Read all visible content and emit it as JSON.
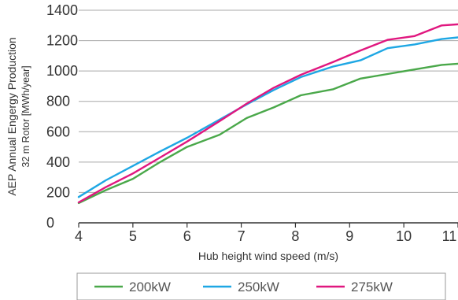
{
  "chart_data": {
    "type": "line",
    "xlabel": "Hub height wind speed (m/s)",
    "ylabel": [
      "AEP Annual Engergy Production",
      "32 m Rotor [MWh/year]"
    ],
    "xlim": [
      4,
      11
    ],
    "ylim": [
      0,
      1400
    ],
    "x_ticks": [
      4,
      5,
      6,
      7,
      8,
      9,
      10,
      11
    ],
    "y_ticks": [
      0,
      200,
      400,
      600,
      800,
      1000,
      1200,
      1400
    ],
    "grid": "horizontal",
    "legend_position": "bottom",
    "series": [
      {
        "name": "200kW",
        "color": "#4aa84a",
        "x": [
          4.0,
          4.5,
          5.0,
          5.5,
          6.0,
          6.6,
          7.1,
          7.6,
          8.1,
          8.7,
          9.2,
          9.7,
          10.2,
          10.7,
          11.1
        ],
        "y": [
          130,
          215,
          290,
          400,
          500,
          580,
          690,
          760,
          840,
          880,
          950,
          980,
          1010,
          1040,
          1050
        ]
      },
      {
        "name": "250kW",
        "color": "#1ea7e4",
        "x": [
          4.0,
          4.5,
          5.0,
          5.5,
          6.0,
          6.6,
          7.1,
          7.6,
          8.1,
          8.7,
          9.2,
          9.7,
          10.2,
          10.7,
          11.1
        ],
        "y": [
          170,
          280,
          375,
          470,
          560,
          680,
          780,
          875,
          960,
          1030,
          1070,
          1150,
          1175,
          1210,
          1225
        ]
      },
      {
        "name": "275kW",
        "color": "#e0177f",
        "x": [
          4.0,
          4.5,
          5.0,
          5.5,
          6.0,
          6.6,
          7.1,
          7.6,
          8.1,
          8.7,
          9.2,
          9.7,
          10.2,
          10.7,
          11.1
        ],
        "y": [
          135,
          235,
          325,
          430,
          535,
          670,
          785,
          890,
          975,
          1060,
          1135,
          1205,
          1230,
          1300,
          1310
        ]
      }
    ]
  }
}
